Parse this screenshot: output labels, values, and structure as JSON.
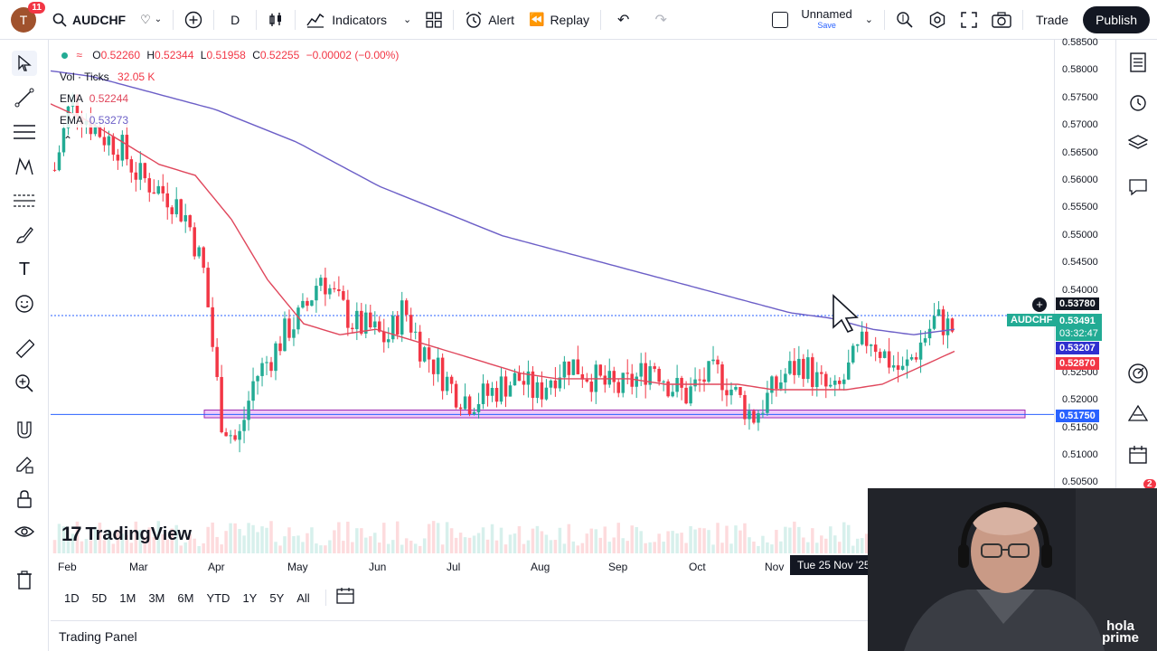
{
  "topbar": {
    "avatar_letter": "T",
    "notification_count": "11",
    "symbol": "AUDCHF",
    "interval": "D",
    "indicators_label": "Indicators",
    "alert_label": "Alert",
    "replay_label": "Replay",
    "layout_name": "Unnamed",
    "layout_status": "Save",
    "trade_label": "Trade",
    "publish_label": "Publish"
  },
  "legend": {
    "open_label": "O",
    "open": "0.52260",
    "high_label": "H",
    "high": "0.52344",
    "low_label": "L",
    "low": "0.51958",
    "close_label": "C",
    "close": "0.52255",
    "change": "−0.00002 (−0.00%)",
    "vol_label": "Vol · Ticks",
    "vol_value": "32.05 K",
    "ema1_label": "EMA",
    "ema1_value": "0.52244",
    "ema2_label": "EMA",
    "ema2_value": "0.53273"
  },
  "price_scale": {
    "ticks": [
      "0.58500",
      "0.58000",
      "0.57500",
      "0.57000",
      "0.56500",
      "0.56000",
      "0.55500",
      "0.55000",
      "0.54500",
      "0.54000",
      "0.52500",
      "0.52000",
      "0.51500",
      "0.51000",
      "0.50500"
    ],
    "crosshair_price": "0.53780",
    "symbol_tag": "AUDCHF",
    "last_price": "0.53491",
    "countdown": "03:32:47",
    "ema_blue_tag": "0.53207",
    "ema_red_tag": "0.52870",
    "zone_tag": "0.51750"
  },
  "time_axis": {
    "labels": [
      "Feb",
      "Mar",
      "Apr",
      "May",
      "Jun",
      "Jul",
      "Aug",
      "Sep",
      "Oct",
      "Nov"
    ],
    "crosshair_date": "Tue 25 Nov '25"
  },
  "range_buttons": [
    "1D",
    "5D",
    "1M",
    "3M",
    "6M",
    "YTD",
    "1Y",
    "5Y",
    "All"
  ],
  "trading_panel_label": "Trading Panel",
  "logo_text": "TradingView",
  "webcam": {
    "brand_line1": "hola",
    "brand_line2": "prime"
  },
  "right_badge": "2",
  "colors": {
    "up": "#22ab94",
    "down": "#f23645",
    "ema_fast": "#e0475c",
    "ema_slow": "#6c5fc7",
    "zone_fill": "#e39ff6",
    "zone_border": "#9c27b0",
    "hline": "#2962ff",
    "symbol_tag": "#22ab94"
  },
  "icons": {
    "left_tools": [
      "cursor-icon",
      "trend-line-icon",
      "horizontal-lines-icon",
      "pattern-icon",
      "measure-fib-icon",
      "brush-icon",
      "text-icon",
      "emoji-icon",
      "ruler-icon",
      "zoom-icon",
      "magnet-icon",
      "lock-draw-icon",
      "lock-icon",
      "eye-icon",
      "trash-icon"
    ],
    "right_tools": [
      "watchlist-icon",
      "alerts-clock-icon",
      "layers-icon",
      "chat-icon",
      "target-icon",
      "hotlist-icon",
      "calendar-icon"
    ]
  },
  "chart_data": {
    "type": "candlestick",
    "symbol": "AUDCHF",
    "interval": "D",
    "ylim": [
      0.503,
      0.587
    ],
    "months": [
      "Feb",
      "Mar",
      "Apr",
      "May",
      "Jun",
      "Jul",
      "Aug",
      "Sep",
      "Oct",
      "Nov"
    ],
    "close_path": [
      0.562,
      0.575,
      0.571,
      0.568,
      0.566,
      0.561,
      0.559,
      0.557,
      0.553,
      0.543,
      0.517,
      0.512,
      0.524,
      0.528,
      0.533,
      0.536,
      0.543,
      0.538,
      0.534,
      0.533,
      0.531,
      0.537,
      0.53,
      0.526,
      0.522,
      0.52,
      0.521,
      0.523,
      0.524,
      0.521,
      0.525,
      0.527,
      0.525,
      0.523,
      0.522,
      0.524,
      0.527,
      0.523,
      0.521,
      0.524,
      0.525,
      0.521,
      0.517,
      0.521,
      0.525,
      0.527,
      0.523,
      0.521,
      0.527,
      0.532,
      0.528,
      0.525,
      0.53,
      0.535,
      0.533
    ],
    "ema_fast_path": [
      0.574,
      0.571,
      0.567,
      0.563,
      0.561,
      0.553,
      0.542,
      0.534,
      0.532,
      0.533,
      0.531,
      0.529,
      0.527,
      0.525,
      0.524,
      0.524,
      0.524,
      0.523,
      0.523,
      0.523,
      0.522,
      0.522,
      0.522,
      0.523,
      0.526,
      0.529
    ],
    "ema_slow_path": [
      0.58,
      0.579,
      0.577,
      0.575,
      0.573,
      0.57,
      0.567,
      0.563,
      0.559,
      0.556,
      0.553,
      0.55,
      0.548,
      0.546,
      0.544,
      0.542,
      0.54,
      0.538,
      0.536,
      0.535,
      0.533,
      0.532,
      0.533
    ],
    "horizontal_line": 0.5355,
    "support_zone": [
      0.5169,
      0.5183
    ],
    "zone_price_label": 0.5175
  }
}
